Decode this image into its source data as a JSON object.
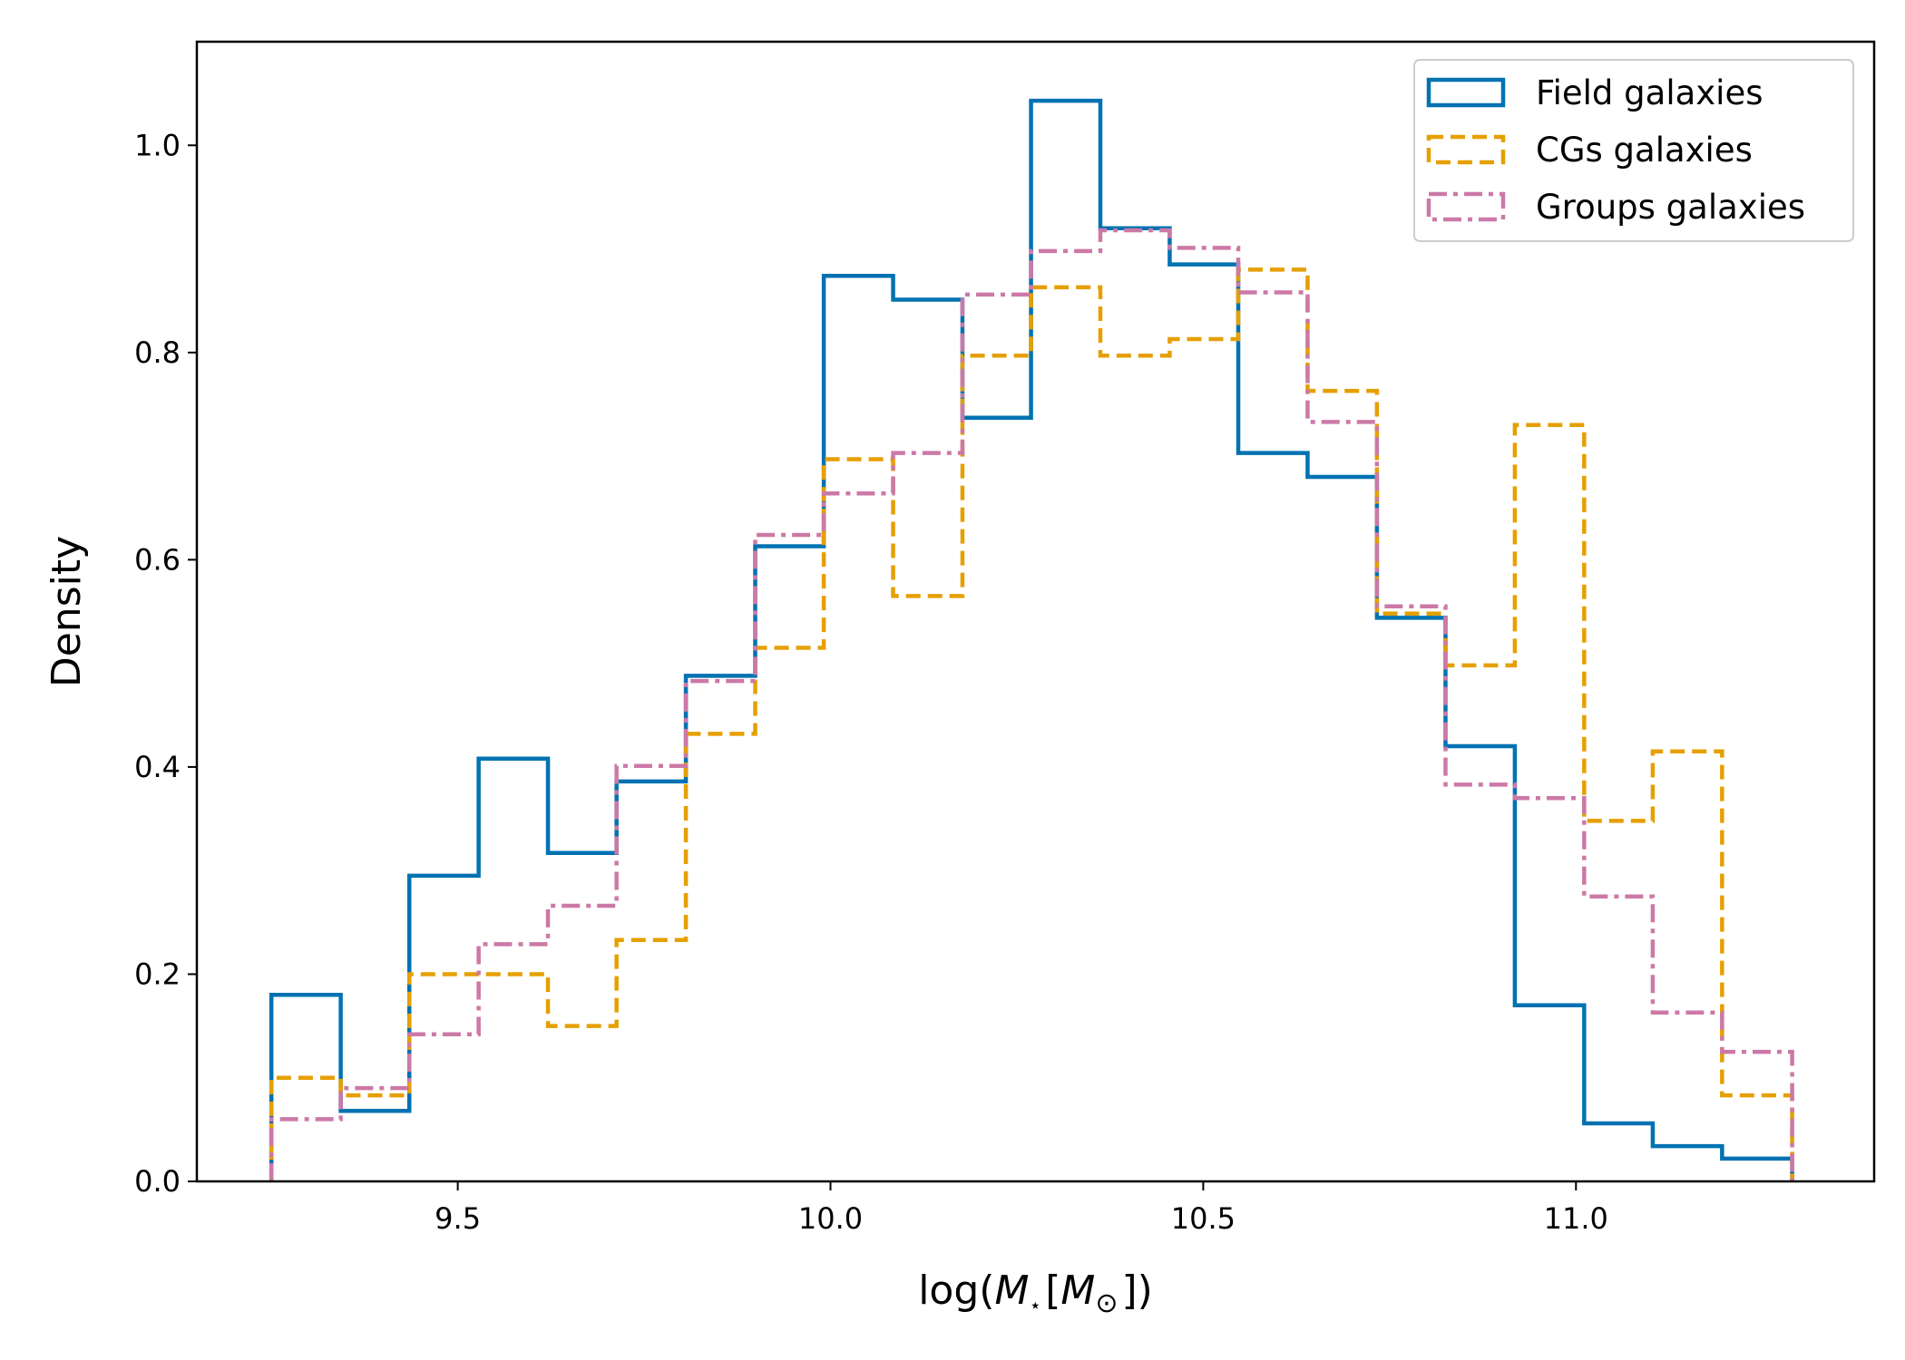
{
  "chart_data": {
    "type": "histogram-step",
    "title": "",
    "xlabel": "log(M⋆[M⊙])",
    "xlabel_parts": {
      "prefix": "log(",
      "main": "M",
      "sub": "⋆",
      "mid": "[",
      "main2": "M",
      "sub2": "⊙",
      "suffix": "])"
    },
    "ylabel": "Density",
    "xlim": [
      9.15,
      11.4
    ],
    "ylim": [
      0.0,
      1.1
    ],
    "xticks": [
      9.5,
      10.0,
      10.5,
      11.0
    ],
    "xtick_labels": [
      "9.5",
      "10.0",
      "10.5",
      "11.0"
    ],
    "yticks": [
      0.0,
      0.2,
      0.4,
      0.6,
      0.8,
      1.0
    ],
    "ytick_labels": [
      "0.0",
      "0.2",
      "0.4",
      "0.6",
      "0.8",
      "1.0"
    ],
    "grid": false,
    "legend_position": "top-right",
    "bin_edges": [
      9.25,
      9.343,
      9.435,
      9.528,
      9.621,
      9.713,
      9.806,
      9.899,
      9.991,
      10.084,
      10.177,
      10.269,
      10.362,
      10.455,
      10.547,
      10.64,
      10.733,
      10.825,
      10.918,
      11.011,
      11.103,
      11.196,
      11.29
    ],
    "series": [
      {
        "name": "Field galaxies",
        "color": "#0072b2",
        "linestyle": "solid",
        "values": [
          0.18,
          0.068,
          0.295,
          0.408,
          0.317,
          0.386,
          0.488,
          0.613,
          0.874,
          0.851,
          0.737,
          1.043,
          0.92,
          0.885,
          0.703,
          0.68,
          0.544,
          0.42,
          0.17,
          0.056,
          0.034,
          0.022
        ]
      },
      {
        "name": "CGs galaxies",
        "color": "#e69f00",
        "linestyle": "dashed",
        "values": [
          0.1,
          0.083,
          0.2,
          0.2,
          0.15,
          0.233,
          0.432,
          0.515,
          0.697,
          0.565,
          0.797,
          0.863,
          0.797,
          0.813,
          0.88,
          0.763,
          0.548,
          0.498,
          0.73,
          0.348,
          0.415,
          0.083
        ]
      },
      {
        "name": "Groups galaxies",
        "color": "#cc79a7",
        "linestyle": "dashdot",
        "values": [
          0.06,
          0.09,
          0.142,
          0.229,
          0.266,
          0.401,
          0.483,
          0.624,
          0.664,
          0.703,
          0.856,
          0.898,
          0.918,
          0.901,
          0.858,
          0.733,
          0.555,
          0.383,
          0.37,
          0.275,
          0.163,
          0.125
        ]
      }
    ]
  }
}
